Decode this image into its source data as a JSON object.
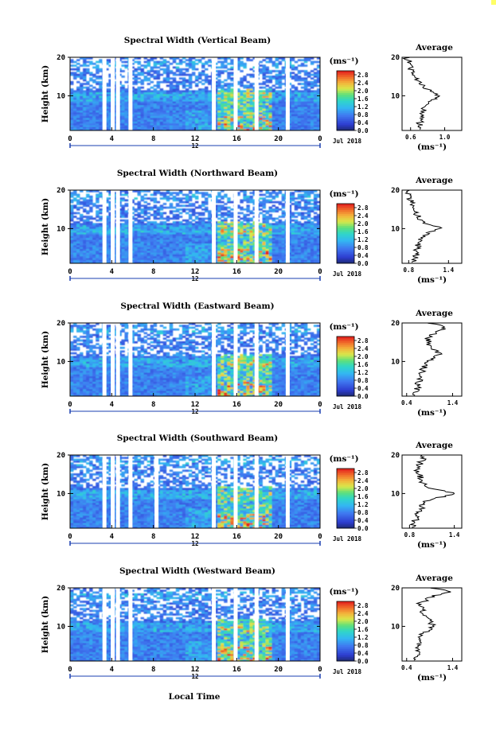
{
  "figure": {
    "date_label": "Jul 2018",
    "day_label": "12",
    "xlabel": "Local Time",
    "ylabel": "Height (km)",
    "colorbar_unit": "(ms⁻¹)",
    "avg_title": "Average",
    "avg_unit": "(ms⁻¹)"
  },
  "chart_data": [
    {
      "type": "heatmap",
      "title": "Spectral Width (Vertical Beam)",
      "xlabel": "Local Time",
      "ylabel": "Height (km)",
      "x_ticks": [
        "0",
        "4",
        "8",
        "12",
        "16",
        "20",
        "0"
      ],
      "xlim": [
        0,
        24
      ],
      "y_ticks": [
        "10",
        "20"
      ],
      "ylim": [
        1,
        20
      ],
      "colorbar_ticks": [
        "0.0",
        "0.4",
        "0.8",
        "1.2",
        "1.6",
        "2.0",
        "2.4",
        "2.8"
      ],
      "clim": [
        0,
        3.0
      ],
      "data_gaps_hours": [
        3.3,
        4.1,
        4.6,
        5.8,
        13.8,
        15.9,
        17.9,
        20.9
      ],
      "average_profile": {
        "title": "Average",
        "xlabel": "(ms⁻¹)",
        "x_ticks": [
          "0.6",
          "1.0"
        ],
        "xlim": [
          0.5,
          1.2
        ],
        "ylim": [
          1,
          20
        ],
        "height_km": [
          2,
          4,
          6,
          8,
          9,
          10,
          11,
          12,
          14,
          16,
          18,
          20
        ],
        "values": [
          0.7,
          0.72,
          0.75,
          0.78,
          0.85,
          0.95,
          0.85,
          0.78,
          0.68,
          0.62,
          0.6,
          0.55
        ]
      }
    },
    {
      "type": "heatmap",
      "title": "Spectral Width (Northward Beam)",
      "xlabel": "Local Time",
      "ylabel": "Height (km)",
      "x_ticks": [
        "0",
        "4",
        "8",
        "12",
        "16",
        "20",
        "0"
      ],
      "xlim": [
        0,
        24
      ],
      "y_ticks": [
        "10",
        "20"
      ],
      "ylim": [
        1,
        20
      ],
      "colorbar_ticks": [
        "0.0",
        "0.4",
        "0.8",
        "1.2",
        "1.6",
        "2.0",
        "2.4",
        "2.8"
      ],
      "clim": [
        0,
        3.0
      ],
      "data_gaps_hours": [
        3.3,
        4.1,
        4.6,
        5.8,
        13.8,
        15.9,
        17.9,
        20.9
      ],
      "average_profile": {
        "title": "Average",
        "xlabel": "(ms⁻¹)",
        "x_ticks": [
          "0.8",
          "1.4"
        ],
        "xlim": [
          0.7,
          1.6
        ],
        "ylim": [
          1,
          20
        ],
        "height_km": [
          2,
          4,
          6,
          8,
          9,
          10,
          11,
          12,
          14,
          16,
          18,
          20
        ],
        "values": [
          0.9,
          0.92,
          0.95,
          1.0,
          1.1,
          1.3,
          1.1,
          0.98,
          0.9,
          0.85,
          0.82,
          0.8
        ]
      }
    },
    {
      "type": "heatmap",
      "title": "Spectral Width (Eastward Beam)",
      "xlabel": "Local Time",
      "ylabel": "Height (km)",
      "x_ticks": [
        "0",
        "4",
        "8",
        "12",
        "16",
        "20",
        "0"
      ],
      "xlim": [
        0,
        24
      ],
      "y_ticks": [
        "10",
        "20"
      ],
      "ylim": [
        1,
        20
      ],
      "colorbar_ticks": [
        "0.0",
        "0.4",
        "0.8",
        "1.2",
        "1.6",
        "2.0",
        "2.4",
        "2.8"
      ],
      "clim": [
        0,
        3.0
      ],
      "data_gaps_hours": [
        3.3,
        4.1,
        4.6,
        5.8,
        13.8,
        15.9,
        17.9,
        20.9
      ],
      "average_profile": {
        "title": "Average",
        "xlabel": "(ms⁻¹)",
        "x_ticks": [
          "0.4",
          "1.4"
        ],
        "xlim": [
          0.3,
          1.6
        ],
        "ylim": [
          1,
          20
        ],
        "height_km": [
          2,
          4,
          6,
          8,
          10,
          12,
          13,
          14,
          16,
          18,
          19,
          20
        ],
        "values": [
          0.6,
          0.65,
          0.7,
          0.75,
          0.9,
          1.1,
          1.0,
          0.9,
          0.85,
          1.1,
          1.3,
          0.9
        ]
      }
    },
    {
      "type": "heatmap",
      "title": "Spectral Width (Southward Beam)",
      "xlabel": "Local Time",
      "ylabel": "Height (km)",
      "x_ticks": [
        "0",
        "4",
        "8",
        "12",
        "16",
        "20",
        "0"
      ],
      "xlim": [
        0,
        24
      ],
      "y_ticks": [
        "10",
        "20"
      ],
      "ylim": [
        1,
        20
      ],
      "colorbar_ticks": [
        "0.0",
        "0.4",
        "0.8",
        "1.2",
        "1.6",
        "2.0",
        "2.4",
        "2.8"
      ],
      "clim": [
        0,
        3.0
      ],
      "data_gaps_hours": [
        3.3,
        4.1,
        4.6,
        5.8,
        8.3,
        13.8,
        15.9,
        17.9,
        20.9
      ],
      "average_profile": {
        "title": "Average",
        "xlabel": "(ms⁻¹)",
        "x_ticks": [
          "0.8",
          "1.4"
        ],
        "xlim": [
          0.7,
          1.5
        ],
        "ylim": [
          1,
          20
        ],
        "height_km": [
          2,
          4,
          6,
          8,
          9,
          10,
          11,
          12,
          14,
          16,
          18,
          20
        ],
        "values": [
          0.85,
          0.9,
          0.95,
          1.0,
          1.2,
          1.4,
          1.15,
          1.0,
          0.95,
          0.9,
          0.95,
          1.0
        ]
      }
    },
    {
      "type": "heatmap",
      "title": "Spectral Width (Westward Beam)",
      "xlabel": "Local Time",
      "ylabel": "Height (km)",
      "x_ticks": [
        "0",
        "4",
        "8",
        "12",
        "16",
        "20",
        "0"
      ],
      "xlim": [
        0,
        24
      ],
      "y_ticks": [
        "10",
        "20"
      ],
      "ylim": [
        1,
        20
      ],
      "colorbar_ticks": [
        "0.0",
        "0.4",
        "0.8",
        "1.2",
        "1.6",
        "2.0",
        "2.4",
        "2.8"
      ],
      "clim": [
        0,
        3.0
      ],
      "data_gaps_hours": [
        3.3,
        4.1,
        4.6,
        5.8,
        13.8,
        15.9,
        17.9,
        20.9
      ],
      "average_profile": {
        "title": "Average",
        "xlabel": "(ms⁻¹)",
        "x_ticks": [
          "0.4",
          "1.4"
        ],
        "xlim": [
          0.3,
          1.6
        ],
        "ylim": [
          1,
          20
        ],
        "height_km": [
          2,
          4,
          6,
          8,
          10,
          12,
          14,
          16,
          18,
          19,
          20
        ],
        "values": [
          0.6,
          0.65,
          0.7,
          0.75,
          1.0,
          0.85,
          0.75,
          0.7,
          1.0,
          1.4,
          0.9
        ]
      }
    }
  ]
}
